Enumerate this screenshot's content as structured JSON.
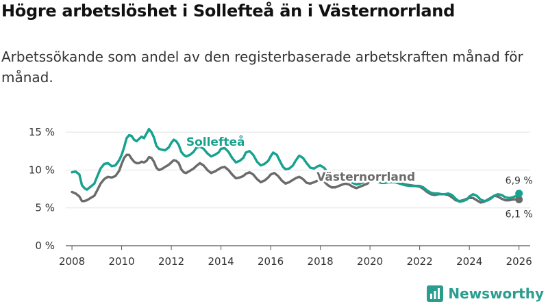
{
  "header": {
    "title": "Högre arbetslöshet i Sollefteå än i Västernorrland",
    "subtitle": "Arbetssökande som andel av den registerbaserade arbetskraften månad för månad."
  },
  "brand": {
    "name": "Newsworthy",
    "logo_icon": "newsworthy-logo-icon"
  },
  "colors": {
    "sollefteå": "#17a28f",
    "västernorrland": "#6b6b6b",
    "grid": "#e3e3e3",
    "axis": "#555555"
  },
  "chart_data": {
    "type": "line",
    "title": "Högre arbetslöshet i Sollefteå än i Västernorrland",
    "xlabel": "",
    "ylabel": "",
    "xlim": [
      2007.75,
      2026.45
    ],
    "ylim": [
      0,
      16
    ],
    "x_ticks": [
      2008,
      2010,
      2012,
      2014,
      2016,
      2018,
      2020,
      2022,
      2024,
      2026
    ],
    "x_tick_labels": [
      "2008",
      "2010",
      "2012",
      "2014",
      "2016",
      "2018",
      "2020",
      "2022",
      "2024",
      "2026"
    ],
    "y_ticks": [
      0,
      5,
      10,
      15
    ],
    "y_tick_labels": [
      "0 %",
      "5 %",
      "10 %",
      "15 %"
    ],
    "grid": true,
    "series": [
      {
        "name": "Sollefteå",
        "end_label": "6,9 %",
        "points": [
          [
            2008.0,
            9.7
          ],
          [
            2008.15,
            9.8
          ],
          [
            2008.3,
            9.4
          ],
          [
            2008.4,
            8.0
          ],
          [
            2008.5,
            7.6
          ],
          [
            2008.6,
            7.4
          ],
          [
            2008.75,
            7.8
          ],
          [
            2008.9,
            8.2
          ],
          [
            2009.0,
            9.0
          ],
          [
            2009.15,
            10.2
          ],
          [
            2009.3,
            10.8
          ],
          [
            2009.45,
            10.9
          ],
          [
            2009.6,
            10.5
          ],
          [
            2009.75,
            10.6
          ],
          [
            2009.9,
            11.3
          ],
          [
            2010.0,
            12.0
          ],
          [
            2010.1,
            13.0
          ],
          [
            2010.2,
            14.2
          ],
          [
            2010.3,
            14.6
          ],
          [
            2010.4,
            14.5
          ],
          [
            2010.5,
            14.0
          ],
          [
            2010.6,
            13.8
          ],
          [
            2010.7,
            14.1
          ],
          [
            2010.8,
            14.4
          ],
          [
            2010.9,
            14.2
          ],
          [
            2011.0,
            14.8
          ],
          [
            2011.1,
            15.4
          ],
          [
            2011.2,
            15.0
          ],
          [
            2011.3,
            14.3
          ],
          [
            2011.4,
            13.2
          ],
          [
            2011.5,
            12.8
          ],
          [
            2011.6,
            12.7
          ],
          [
            2011.75,
            12.6
          ],
          [
            2011.9,
            13.0
          ],
          [
            2012.0,
            13.6
          ],
          [
            2012.1,
            14.0
          ],
          [
            2012.2,
            13.8
          ],
          [
            2012.3,
            13.3
          ],
          [
            2012.4,
            12.4
          ],
          [
            2012.5,
            12.0
          ],
          [
            2012.6,
            11.8
          ],
          [
            2012.75,
            12.0
          ],
          [
            2012.9,
            12.4
          ],
          [
            2013.0,
            12.9
          ],
          [
            2013.15,
            13.1
          ],
          [
            2013.3,
            12.8
          ],
          [
            2013.45,
            12.2
          ],
          [
            2013.6,
            11.8
          ],
          [
            2013.75,
            12.0
          ],
          [
            2013.9,
            12.3
          ],
          [
            2014.0,
            12.8
          ],
          [
            2014.15,
            12.9
          ],
          [
            2014.3,
            12.4
          ],
          [
            2014.45,
            11.6
          ],
          [
            2014.6,
            11.0
          ],
          [
            2014.75,
            11.2
          ],
          [
            2014.9,
            11.6
          ],
          [
            2015.0,
            12.3
          ],
          [
            2015.15,
            12.5
          ],
          [
            2015.3,
            12.0
          ],
          [
            2015.45,
            11.1
          ],
          [
            2015.6,
            10.6
          ],
          [
            2015.75,
            10.8
          ],
          [
            2015.9,
            11.2
          ],
          [
            2016.0,
            11.8
          ],
          [
            2016.1,
            12.3
          ],
          [
            2016.25,
            12.0
          ],
          [
            2016.4,
            11.0
          ],
          [
            2016.5,
            10.4
          ],
          [
            2016.6,
            10.1
          ],
          [
            2016.75,
            10.2
          ],
          [
            2016.9,
            10.6
          ],
          [
            2017.0,
            11.2
          ],
          [
            2017.15,
            11.9
          ],
          [
            2017.3,
            11.6
          ],
          [
            2017.45,
            10.9
          ],
          [
            2017.6,
            10.3
          ],
          [
            2017.75,
            10.2
          ],
          [
            2017.9,
            10.5
          ],
          [
            2018.0,
            10.6
          ],
          [
            2018.15,
            10.3
          ],
          [
            2018.3,
            9.7
          ],
          [
            2018.45,
            9.1
          ],
          [
            2018.6,
            8.7
          ],
          [
            2018.75,
            8.6
          ],
          [
            2018.9,
            8.9
          ],
          [
            2019.0,
            9.0
          ],
          [
            2019.15,
            8.8
          ],
          [
            2019.3,
            8.3
          ],
          [
            2019.45,
            8.1
          ],
          [
            2019.6,
            8.2
          ],
          [
            2019.75,
            8.4
          ],
          [
            2019.9,
            8.6
          ],
          [
            2020.0,
            8.8
          ],
          [
            2020.15,
            8.7
          ],
          [
            2020.3,
            8.5
          ],
          [
            2020.45,
            8.3
          ],
          [
            2020.6,
            8.3
          ],
          [
            2020.75,
            8.4
          ],
          [
            2021.0,
            8.4
          ],
          [
            2021.2,
            8.2
          ],
          [
            2021.4,
            8.0
          ],
          [
            2021.6,
            7.9
          ],
          [
            2021.8,
            7.9
          ],
          [
            2022.0,
            7.9
          ],
          [
            2022.15,
            7.7
          ],
          [
            2022.3,
            7.3
          ],
          [
            2022.45,
            7.0
          ],
          [
            2022.6,
            6.9
          ],
          [
            2022.75,
            6.9
          ],
          [
            2022.9,
            6.8
          ],
          [
            2023.0,
            6.8
          ],
          [
            2023.15,
            6.9
          ],
          [
            2023.3,
            6.7
          ],
          [
            2023.45,
            6.2
          ],
          [
            2023.6,
            5.8
          ],
          [
            2023.75,
            5.9
          ],
          [
            2023.9,
            6.1
          ],
          [
            2024.0,
            6.5
          ],
          [
            2024.15,
            6.8
          ],
          [
            2024.3,
            6.6
          ],
          [
            2024.45,
            6.1
          ],
          [
            2024.6,
            5.9
          ],
          [
            2024.75,
            6.0
          ],
          [
            2024.9,
            6.3
          ],
          [
            2025.0,
            6.6
          ],
          [
            2025.15,
            6.8
          ],
          [
            2025.3,
            6.7
          ],
          [
            2025.45,
            6.4
          ],
          [
            2025.6,
            6.3
          ],
          [
            2025.75,
            6.4
          ],
          [
            2025.9,
            6.6
          ],
          [
            2026.0,
            6.9
          ]
        ]
      },
      {
        "name": "Västernorrland",
        "end_label": "6,1 %",
        "points": [
          [
            2008.0,
            7.1
          ],
          [
            2008.15,
            6.9
          ],
          [
            2008.3,
            6.5
          ],
          [
            2008.4,
            5.9
          ],
          [
            2008.5,
            5.9
          ],
          [
            2008.6,
            6.0
          ],
          [
            2008.75,
            6.3
          ],
          [
            2008.9,
            6.6
          ],
          [
            2009.0,
            7.2
          ],
          [
            2009.15,
            8.2
          ],
          [
            2009.3,
            8.8
          ],
          [
            2009.45,
            9.1
          ],
          [
            2009.6,
            9.0
          ],
          [
            2009.75,
            9.2
          ],
          [
            2009.9,
            9.9
          ],
          [
            2010.0,
            10.8
          ],
          [
            2010.1,
            11.6
          ],
          [
            2010.2,
            12.0
          ],
          [
            2010.3,
            12.0
          ],
          [
            2010.4,
            11.5
          ],
          [
            2010.5,
            11.1
          ],
          [
            2010.6,
            10.9
          ],
          [
            2010.7,
            10.9
          ],
          [
            2010.8,
            11.1
          ],
          [
            2010.9,
            11.0
          ],
          [
            2011.0,
            11.2
          ],
          [
            2011.1,
            11.7
          ],
          [
            2011.2,
            11.6
          ],
          [
            2011.3,
            11.1
          ],
          [
            2011.4,
            10.3
          ],
          [
            2011.5,
            10.0
          ],
          [
            2011.6,
            10.1
          ],
          [
            2011.75,
            10.4
          ],
          [
            2011.9,
            10.7
          ],
          [
            2012.0,
            11.0
          ],
          [
            2012.1,
            11.3
          ],
          [
            2012.2,
            11.2
          ],
          [
            2012.3,
            10.9
          ],
          [
            2012.4,
            10.1
          ],
          [
            2012.5,
            9.7
          ],
          [
            2012.6,
            9.6
          ],
          [
            2012.75,
            9.9
          ],
          [
            2012.9,
            10.2
          ],
          [
            2013.0,
            10.5
          ],
          [
            2013.15,
            10.9
          ],
          [
            2013.3,
            10.6
          ],
          [
            2013.45,
            10.0
          ],
          [
            2013.6,
            9.6
          ],
          [
            2013.75,
            9.8
          ],
          [
            2013.9,
            10.1
          ],
          [
            2014.0,
            10.3
          ],
          [
            2014.15,
            10.4
          ],
          [
            2014.3,
            10.0
          ],
          [
            2014.45,
            9.4
          ],
          [
            2014.6,
            8.9
          ],
          [
            2014.75,
            9.0
          ],
          [
            2014.9,
            9.2
          ],
          [
            2015.0,
            9.5
          ],
          [
            2015.15,
            9.7
          ],
          [
            2015.3,
            9.4
          ],
          [
            2015.45,
            8.8
          ],
          [
            2015.6,
            8.4
          ],
          [
            2015.75,
            8.6
          ],
          [
            2015.9,
            9.0
          ],
          [
            2016.0,
            9.4
          ],
          [
            2016.15,
            9.6
          ],
          [
            2016.3,
            9.2
          ],
          [
            2016.45,
            8.6
          ],
          [
            2016.6,
            8.2
          ],
          [
            2016.75,
            8.4
          ],
          [
            2016.9,
            8.7
          ],
          [
            2017.0,
            8.9
          ],
          [
            2017.15,
            9.1
          ],
          [
            2017.3,
            8.8
          ],
          [
            2017.45,
            8.3
          ],
          [
            2017.6,
            8.2
          ],
          [
            2017.75,
            8.4
          ],
          [
            2017.9,
            8.6
          ],
          [
            2018.0,
            8.7
          ],
          [
            2018.15,
            8.5
          ],
          [
            2018.3,
            8.0
          ],
          [
            2018.45,
            7.7
          ],
          [
            2018.6,
            7.7
          ],
          [
            2018.75,
            7.9
          ],
          [
            2018.9,
            8.1
          ],
          [
            2019.0,
            8.2
          ],
          [
            2019.15,
            8.1
          ],
          [
            2019.3,
            7.8
          ],
          [
            2019.45,
            7.6
          ],
          [
            2019.6,
            7.8
          ],
          [
            2019.75,
            8.0
          ],
          [
            2019.9,
            8.2
          ],
          [
            2020.0,
            8.6
          ],
          [
            2020.15,
            8.8
          ],
          [
            2020.3,
            8.9
          ],
          [
            2020.45,
            8.8
          ],
          [
            2020.6,
            8.7
          ],
          [
            2020.75,
            8.6
          ],
          [
            2021.0,
            8.5
          ],
          [
            2021.2,
            8.3
          ],
          [
            2021.4,
            8.1
          ],
          [
            2021.6,
            8.0
          ],
          [
            2021.8,
            7.9
          ],
          [
            2022.0,
            7.8
          ],
          [
            2022.15,
            7.5
          ],
          [
            2022.3,
            7.1
          ],
          [
            2022.45,
            6.8
          ],
          [
            2022.6,
            6.7
          ],
          [
            2022.75,
            6.8
          ],
          [
            2022.9,
            6.8
          ],
          [
            2023.0,
            6.8
          ],
          [
            2023.15,
            6.7
          ],
          [
            2023.3,
            6.4
          ],
          [
            2023.45,
            6.0
          ],
          [
            2023.6,
            5.9
          ],
          [
            2023.75,
            6.0
          ],
          [
            2023.9,
            6.2
          ],
          [
            2024.0,
            6.3
          ],
          [
            2024.15,
            6.3
          ],
          [
            2024.3,
            6.0
          ],
          [
            2024.45,
            5.7
          ],
          [
            2024.6,
            5.8
          ],
          [
            2024.75,
            6.1
          ],
          [
            2024.9,
            6.4
          ],
          [
            2025.0,
            6.6
          ],
          [
            2025.15,
            6.5
          ],
          [
            2025.3,
            6.2
          ],
          [
            2025.45,
            6.0
          ],
          [
            2025.6,
            6.0
          ],
          [
            2025.75,
            6.1
          ],
          [
            2025.9,
            6.1
          ],
          [
            2026.0,
            6.1
          ]
        ]
      }
    ]
  }
}
